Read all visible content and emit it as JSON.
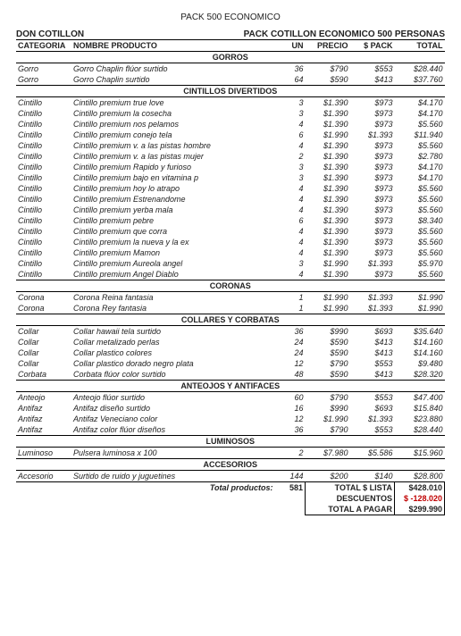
{
  "page_title": "PACK 500 ECONOMICO",
  "brand": "DON COTILLON",
  "subtitle": "PACK COTILLON ECONOMICO 500 PERSONAS",
  "columns": {
    "categoria": "CATEGORIA",
    "nombre": "NOMBRE PRODUCTO",
    "un": "UN",
    "precio": "PRECIO",
    "pack": "$ PACK",
    "total": "TOTAL"
  },
  "sections": [
    {
      "title": "GORROS",
      "rows": [
        [
          "Gorro",
          "Gorro Chaplin flúor surtido",
          "36",
          "$790",
          "$553",
          "$28.440"
        ],
        [
          "Gorro",
          "Gorro Chaplin surtido",
          "64",
          "$590",
          "$413",
          "$37.760"
        ]
      ]
    },
    {
      "title": "CINTILLOS DIVERTIDOS",
      "rows": [
        [
          "Cintillo",
          "Cintillo premium true love",
          "3",
          "$1.390",
          "$973",
          "$4.170"
        ],
        [
          "Cintillo",
          "Cintillo premium la cosecha",
          "3",
          "$1.390",
          "$973",
          "$4.170"
        ],
        [
          "Cintillo",
          "Cintillo premium nos pelamos",
          "4",
          "$1.390",
          "$973",
          "$5.560"
        ],
        [
          "Cintillo",
          "Cintillo premium conejo tela",
          "6",
          "$1.990",
          "$1.393",
          "$11.940"
        ],
        [
          "Cintillo",
          "Cintillo premium v. a las pistas hombre",
          "4",
          "$1.390",
          "$973",
          "$5.560"
        ],
        [
          "Cintillo",
          "Cintillo premium v. a las pistas mujer",
          "2",
          "$1.390",
          "$973",
          "$2.780"
        ],
        [
          "Cintillo",
          "Cintillo premium Rapido y furioso",
          "3",
          "$1.390",
          "$973",
          "$4.170"
        ],
        [
          "Cintillo",
          "Cintillo premium bajo en vitamina p",
          "3",
          "$1.390",
          "$973",
          "$4.170"
        ],
        [
          "Cintillo",
          "Cintillo premium hoy lo atrapo",
          "4",
          "$1.390",
          "$973",
          "$5.560"
        ],
        [
          "Cintillo",
          "Cintillo premium Estrenandome",
          "4",
          "$1.390",
          "$973",
          "$5.560"
        ],
        [
          "Cintillo",
          "Cintillo premium yerba mala",
          "4",
          "$1.390",
          "$973",
          "$5.560"
        ],
        [
          "Cintillo",
          "Cintillo premium pebre",
          "6",
          "$1.390",
          "$973",
          "$8.340"
        ],
        [
          "Cintillo",
          "Cintillo premium que corra",
          "4",
          "$1.390",
          "$973",
          "$5.560"
        ],
        [
          "Cintillo",
          "Cintillo premium la nueva y la ex",
          "4",
          "$1.390",
          "$973",
          "$5.560"
        ],
        [
          "Cintillo",
          "Cintillo premium Mamon",
          "4",
          "$1.390",
          "$973",
          "$5.560"
        ],
        [
          "Cintillo",
          "Cintillo premium Aureola angel",
          "3",
          "$1.990",
          "$1.393",
          "$5.970"
        ],
        [
          "Cintillo",
          "Cintillo premium Angel Diablo",
          "4",
          "$1.390",
          "$973",
          "$5.560"
        ]
      ]
    },
    {
      "title": "CORONAS",
      "rows": [
        [
          "Corona",
          "Corona Reina fantasia",
          "1",
          "$1.990",
          "$1.393",
          "$1.990"
        ],
        [
          "Corona",
          "Corona Rey fantasia",
          "1",
          "$1.990",
          "$1.393",
          "$1.990"
        ]
      ]
    },
    {
      "title": "COLLARES Y CORBATAS",
      "rows": [
        [
          "Collar",
          "Collar hawaii tela surtido",
          "36",
          "$990",
          "$693",
          "$35.640"
        ],
        [
          "Collar",
          "Collar metalizado perlas",
          "24",
          "$590",
          "$413",
          "$14.160"
        ],
        [
          "Collar",
          "Collar plastico colores",
          "24",
          "$590",
          "$413",
          "$14.160"
        ],
        [
          "Collar",
          "Collar plastico dorado negro plata",
          "12",
          "$790",
          "$553",
          "$9.480"
        ],
        [
          "Corbata",
          "Corbata flúor color surtido",
          "48",
          "$590",
          "$413",
          "$28.320"
        ]
      ]
    },
    {
      "title": "ANTEOJOS Y ANTIFACES",
      "rows": [
        [
          "Anteojo",
          "Anteojo flúor surtido",
          "60",
          "$790",
          "$553",
          "$47.400"
        ],
        [
          "Antifaz",
          "Antifaz diseño surtido",
          "16",
          "$990",
          "$693",
          "$15.840"
        ],
        [
          "Antifaz",
          "Antifaz Veneciano color",
          "12",
          "$1.990",
          "$1.393",
          "$23.880"
        ],
        [
          "Antifaz",
          "Antifaz color flúor diseños",
          "36",
          "$790",
          "$553",
          "$28.440"
        ]
      ]
    },
    {
      "title": "LUMINOSOS",
      "rows": [
        [
          "Luminoso",
          "Pulsera luminosa x 100",
          "2",
          "$7.980",
          "$5.586",
          "$15.960"
        ]
      ]
    },
    {
      "title": "ACCESORIOS",
      "rows": [
        [
          "Accesorio",
          "Surtido de ruido y juguetines",
          "144",
          "$200",
          "$140",
          "$28.800"
        ]
      ]
    }
  ],
  "totals": {
    "total_productos_label": "Total productos:",
    "total_productos_value": "581",
    "total_lista_label": "TOTAL $ LISTA",
    "total_lista_value": "$428.010",
    "descuentos_label": "DESCUENTOS",
    "descuentos_value": "$ -128.020",
    "total_pagar_label": "TOTAL A PAGAR",
    "total_pagar_value": "$299.990"
  }
}
